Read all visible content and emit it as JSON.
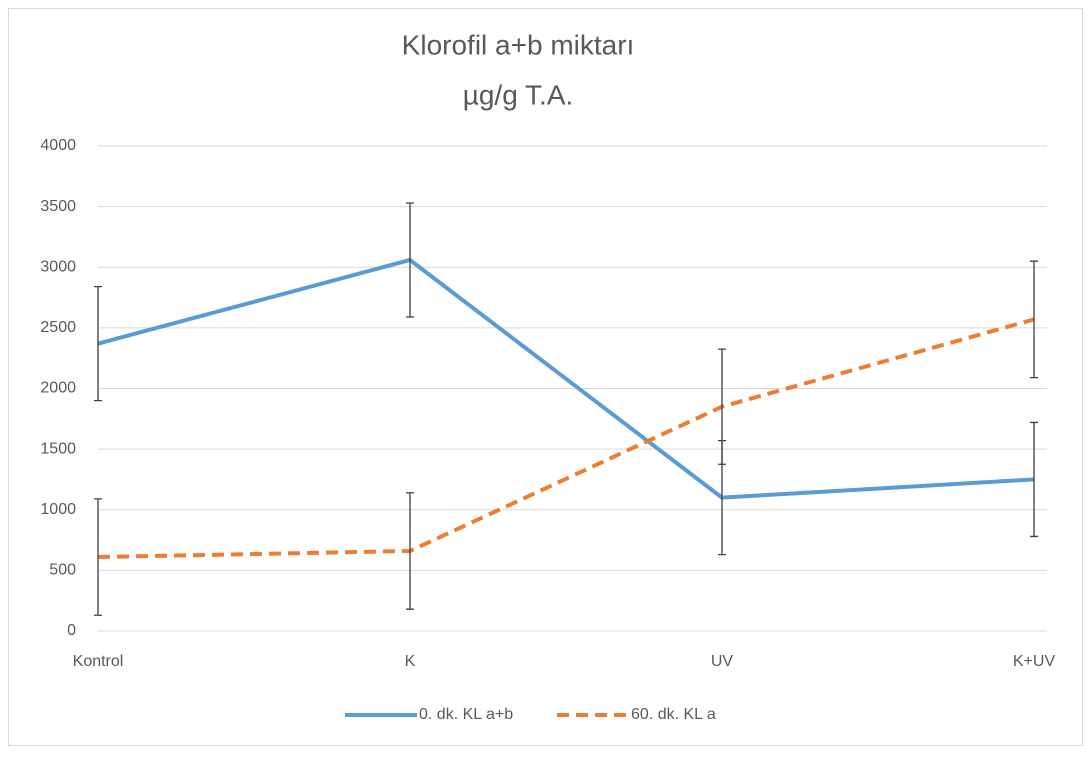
{
  "chart_data": {
    "type": "line",
    "title_lines": [
      "Klorofil a+b miktarı",
      "µg/g T.A."
    ],
    "categories": [
      "Kontrol",
      "K",
      "UV",
      "K+UV"
    ],
    "series": [
      {
        "name": "0. dk. KL a+b",
        "color": "#5b9bd5",
        "dashed": false,
        "values": [
          2370,
          3060,
          1100,
          1250
        ],
        "errors": [
          470,
          470,
          470,
          470
        ]
      },
      {
        "name": "60. dk. KL a",
        "color": "#ed7d31",
        "dashed": true,
        "values": [
          610,
          660,
          1850,
          2570
        ],
        "errors": [
          480,
          480,
          475,
          480
        ]
      }
    ],
    "ylim": [
      0,
      4000
    ],
    "yticks": [
      0,
      500,
      1000,
      1500,
      2000,
      2500,
      3000,
      3500,
      4000
    ],
    "grid": true,
    "legend": "bottom"
  }
}
